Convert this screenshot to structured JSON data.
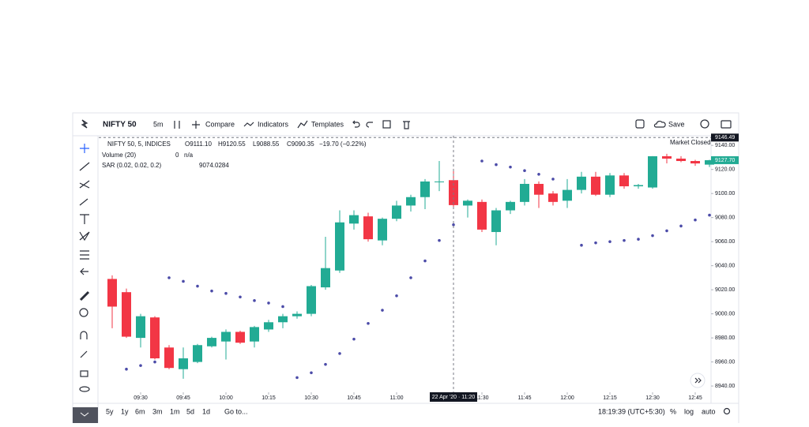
{
  "toolbar": {
    "symbol": "NIFTY 50",
    "interval": "5m",
    "compare": "Compare",
    "indicators": "Indicators",
    "templates": "Templates",
    "save": "Save"
  },
  "legend": {
    "instrument": "NIFTY 50, 5, INDICES",
    "open": "O9111.10",
    "high": "H9120.55",
    "low": "L9088.55",
    "close": "C9090.35",
    "change": "−19.70 (−0.22%)",
    "volume": "Volume (20)",
    "volume_value": "0",
    "volume_na": "n/a",
    "sar": "SAR (0.02, 0.02, 0.2)",
    "market_status": "Market Closed"
  },
  "bottom_bar": {
    "ranges": [
      "5y",
      "1y",
      "6m",
      "3m",
      "1m",
      "5d",
      "1d"
    ],
    "goto": "Go to...",
    "clock": "18:19:39 (UTC+5:30)",
    "percent": "%",
    "log": "log",
    "auto": "auto"
  },
  "chart_data": {
    "type": "candlestick",
    "categories": [
      null,
      null,
      "09:30",
      null,
      null,
      "09:45",
      null,
      null,
      "10:00",
      null,
      null,
      "10:15",
      null,
      null,
      "10:30",
      null,
      null,
      "10:45",
      null,
      null,
      "11:00",
      null,
      null,
      "11:15",
      null,
      null,
      "11:30",
      null,
      null,
      "11:45",
      null,
      null,
      "12:00",
      null,
      null,
      "12:15",
      null,
      null,
      "12:30",
      null,
      null,
      "12:45",
      null
    ],
    "open": [
      9029,
      9018,
      8980,
      8997,
      8972,
      8954,
      8960,
      8973,
      8977,
      8985,
      8977,
      8987,
      8993,
      8998,
      9000,
      9022,
      9036,
      9075,
      9081,
      9061,
      9079,
      9090,
      9097,
      9110,
      9111.1,
      9090,
      9093,
      9068,
      9086,
      9093,
      9108,
      9100,
      9094,
      9103,
      9114,
      9099,
      9115,
      9106,
      9105,
      9131,
      9129,
      9127,
      9124
    ],
    "high": [
      9032,
      9021,
      9000,
      8998,
      8974,
      8972,
      8975,
      8981,
      8987,
      8986,
      8990,
      8995,
      9000,
      9002,
      9024,
      9064,
      9086,
      9086,
      9084,
      9080,
      9094,
      9099,
      9112,
      9127,
      9120.55,
      9095,
      9095,
      9088,
      9094,
      9112,
      9110,
      9102,
      9112,
      9118,
      9118,
      9117,
      9117,
      9108,
      9131,
      9133,
      9131,
      9128,
      9128
    ],
    "low": [
      8988,
      8980,
      8972,
      8962,
      8954,
      8946,
      8959,
      8972,
      8962,
      8975,
      8972,
      8985,
      8988,
      8996,
      8998,
      9020,
      9034,
      9070,
      9060,
      9057,
      9077,
      9085,
      9087,
      9102,
      9088.55,
      9080,
      9068,
      9057,
      9083,
      9090,
      9088,
      9090,
      9088,
      9100,
      9098,
      9097,
      9104,
      9104,
      9104,
      9125,
      9126,
      9123,
      9122
    ],
    "close": [
      9006,
      8981,
      8998,
      8963,
      8955,
      8963,
      8974,
      8980,
      8985,
      8976,
      8989,
      8993,
      8998,
      9000,
      9023,
      9038,
      9076,
      9082,
      9062,
      9079,
      9090,
      9097,
      9110,
      9110,
      9090.35,
      9094,
      9070,
      9086,
      9093,
      9108,
      9099,
      9093,
      9103,
      9114,
      9099,
      9115,
      9106,
      9107,
      9131,
      9129,
      9127,
      9125,
      9127.7
    ],
    "up_color": "#22ab94",
    "down_color": "#f23645",
    "sar": {
      "color": "#4b4ba8",
      "values": [
        null,
        8954,
        8957,
        8960,
        9030,
        9027,
        9023,
        9019,
        9017,
        9014,
        9011,
        9009,
        9006,
        8947,
        8951,
        8958,
        8967,
        8979,
        8992,
        9003,
        9015,
        9030,
        9044,
        9061,
        9074.0284,
        null,
        9127,
        9124,
        9122,
        9119,
        9116,
        9112,
        null,
        9057,
        9059,
        9060,
        9061,
        9062,
        9065,
        9069,
        9073,
        9078,
        9082
      ]
    },
    "ylim": [
      8934.8,
      9148
    ],
    "yticks": [
      {
        "value": 8940,
        "label": "8940.00"
      },
      {
        "value": 8960,
        "label": "8960.00"
      },
      {
        "value": 8980,
        "label": "8980.00"
      },
      {
        "value": 9000,
        "label": "9000.00"
      },
      {
        "value": 9020,
        "label": "9020.00"
      },
      {
        "value": 9040,
        "label": "9040.00"
      },
      {
        "value": 9060,
        "label": "9060.00"
      },
      {
        "value": 9080,
        "label": "9080.00"
      },
      {
        "value": 9100,
        "label": "9100.00"
      },
      {
        "value": 9120,
        "label": "9120.00"
      },
      {
        "value": 9140,
        "label": "9140.00"
      }
    ],
    "crosshair_price": {
      "value": 9146.49,
      "label": "9146.49"
    },
    "crosshair_time": "22 Apr '20 · 11:20",
    "crosshair_index": 24,
    "last_price": {
      "value": 9127.7,
      "label": "9127.70"
    }
  }
}
